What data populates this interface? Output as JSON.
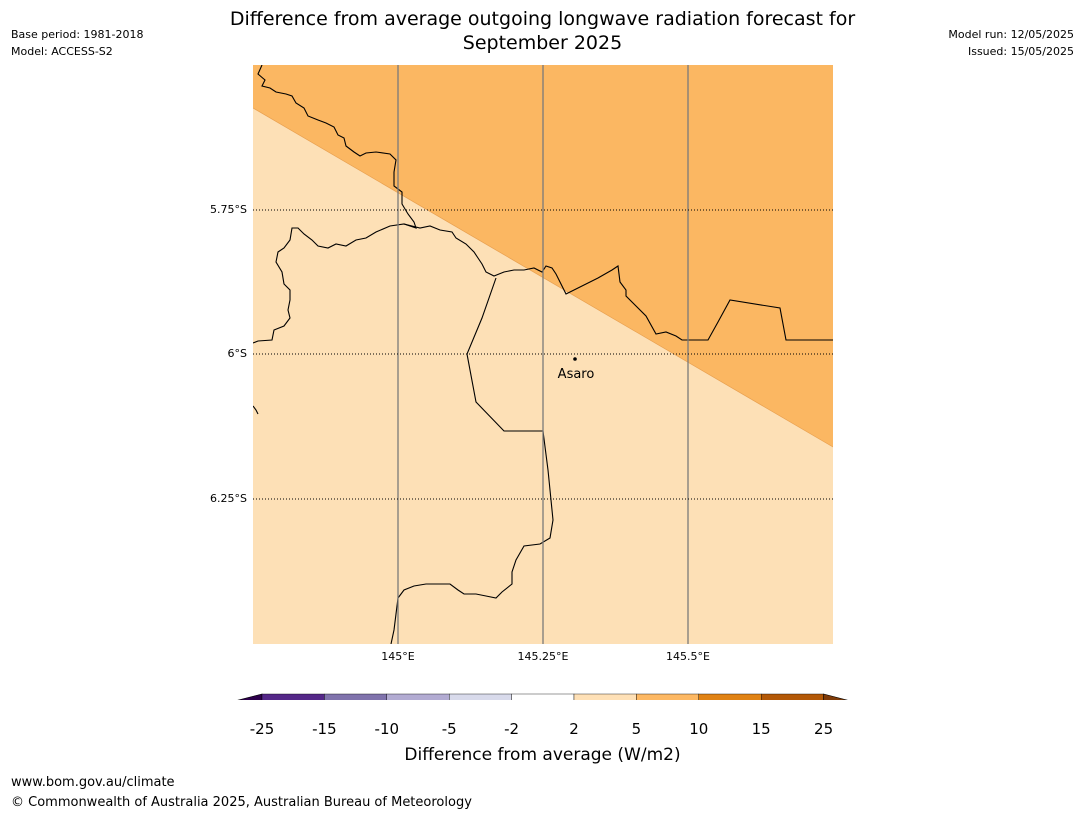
{
  "header": {
    "title_line1": "Difference from average outgoing longwave radiation forecast for",
    "title_line2": "September 2025",
    "base_period": "Base period: 1981-2018",
    "model": "Model: ACCESS-S2",
    "model_run": "Model run: 12/05/2025",
    "issued": "Issued: 15/05/2025"
  },
  "map": {
    "latitude_labels": [
      "5.75°S",
      "6°S",
      "6.25°S"
    ],
    "longitude_labels": [
      "145°E",
      "145.25°E",
      "145.5°E"
    ],
    "place": {
      "name": "Asaro",
      "lat": -6.01,
      "lon": 145.3
    },
    "field": [
      {
        "category": "5 to 10",
        "color": "#fbb762",
        "region": "north-east of diagonal"
      },
      {
        "category": "2 to 5",
        "color": "#fde0b6",
        "region": "south-west of diagonal"
      }
    ]
  },
  "colorbar": {
    "title": "Difference from average (W/m2)",
    "ticks": [
      "-25",
      "-15",
      "-10",
      "-5",
      "-2",
      "2",
      "5",
      "10",
      "15",
      "25"
    ],
    "colors": [
      "#2d004b",
      "#542788",
      "#8073ac",
      "#b2abd2",
      "#d8daeb",
      "#ffffff",
      "#fee0b6",
      "#fdb863",
      "#e08214",
      "#b35806",
      "#7f3b08"
    ]
  },
  "footer": {
    "url": "www.bom.gov.au/climate",
    "copyright": "© Commonwealth of Australia 2025, Australian Bureau of Meteorology"
  }
}
